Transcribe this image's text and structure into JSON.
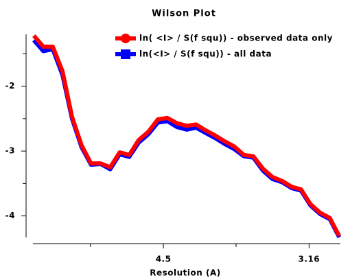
{
  "chart_data": {
    "type": "line",
    "title": "Wilson Plot",
    "x_label": "Resolution (A)",
    "x": [
      0.0043,
      0.0076,
      0.0109,
      0.0143,
      0.0176,
      0.0209,
      0.0242,
      0.0276,
      0.0309,
      0.0342,
      0.0375,
      0.0408,
      0.0442,
      0.0475,
      0.0508,
      0.0541,
      0.0575,
      0.0608,
      0.0641,
      0.0674,
      0.0707,
      0.0741,
      0.0774,
      0.0807,
      0.084,
      0.0873,
      0.0907,
      0.094,
      0.0973,
      0.1006,
      0.1039,
      0.1073,
      0.1106
    ],
    "series": [
      {
        "name": "ln(<I> / S(f squ)) - all data",
        "color": "#0000ff",
        "marker": "square",
        "values": [
          -1.29,
          -1.46,
          -1.43,
          -1.83,
          -2.5,
          -2.94,
          -3.21,
          -3.2,
          -3.28,
          -3.05,
          -3.09,
          -2.87,
          -2.74,
          -2.56,
          -2.54,
          -2.63,
          -2.67,
          -2.64,
          -2.72,
          -2.8,
          -2.89,
          -2.97,
          -3.08,
          -3.1,
          -3.3,
          -3.43,
          -3.48,
          -3.57,
          -3.61,
          -3.84,
          -3.97,
          -4.05,
          -4.33
        ]
      },
      {
        "name": "ln( <I> / S(f squ))  - observed data only",
        "color": "#ff0000",
        "marker": "circle",
        "values": [
          -1.22,
          -1.39,
          -1.39,
          -1.77,
          -2.47,
          -2.91,
          -3.19,
          -3.19,
          -3.25,
          -3.02,
          -3.06,
          -2.83,
          -2.7,
          -2.51,
          -2.49,
          -2.57,
          -2.61,
          -2.59,
          -2.68,
          -2.76,
          -2.85,
          -2.93,
          -3.06,
          -3.08,
          -3.27,
          -3.4,
          -3.46,
          -3.55,
          -3.59,
          -3.82,
          -3.95,
          -4.03,
          -4.31
        ]
      }
    ],
    "xlim": [
      0.004,
      0.111
    ],
    "xticks": [
      {
        "value": 0.0494,
        "label": "4.5"
      },
      {
        "value": 0.1001,
        "label": "3.16"
      }
    ],
    "xminor_ticks": [
      0.024,
      0.0747
    ],
    "ylim": [
      -4.35,
      -1.2
    ],
    "yticks": [
      -4,
      -3,
      -2
    ],
    "yminor_ticks": [
      -3.5,
      -2.5,
      -1.5
    ],
    "legend": "top-right"
  }
}
